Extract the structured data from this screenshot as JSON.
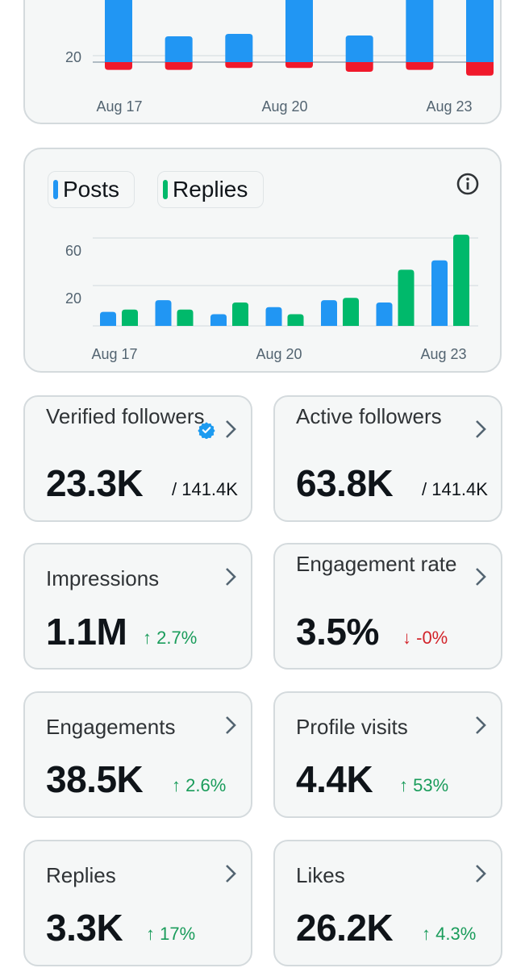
{
  "colors": {
    "posts": "#2196f3",
    "replies": "#00b96b",
    "negative": "#f0192b",
    "up": "#1a9c5b",
    "down": "#d2232a",
    "verified": "#1d9bf0"
  },
  "chart_top": {
    "chart_data": {
      "type": "bar",
      "x_tick_labels": [
        "Aug 17",
        "Aug 20",
        "Aug 23"
      ],
      "y_tick_labels": [
        "20"
      ],
      "ylim": [
        0,
        35
      ],
      "categories": [
        "Aug 17",
        "Aug 18",
        "Aug 19",
        "Aug 20",
        "Aug 21",
        "Aug 22",
        "Aug 23"
      ],
      "series": [
        {
          "color": "#2196f3",
          "values": [
            35,
            24,
            26,
            35,
            25,
            35,
            35
          ]
        },
        {
          "color": "#f0192b",
          "values": [
            -4,
            -4,
            -3,
            -3,
            -5,
            -4,
            -7
          ]
        }
      ]
    }
  },
  "chart_posts_replies": {
    "legend": {
      "posts": "Posts",
      "replies": "Replies"
    },
    "chart_data": {
      "type": "bar",
      "categories": [
        "Aug 17",
        "Aug 18",
        "Aug 19",
        "Aug 20",
        "Aug 21",
        "Aug 22",
        "Aug 23"
      ],
      "x_tick_labels": [
        "Aug 17",
        "Aug 20",
        "Aug 23"
      ],
      "y_tick_labels": [
        "60",
        "20"
      ],
      "ylim": [
        0,
        70
      ],
      "series": [
        {
          "name": "Posts",
          "color": "#2196f3",
          "values": [
            6,
            11,
            5,
            8,
            11,
            10,
            28
          ]
        },
        {
          "name": "Replies",
          "color": "#00b96b",
          "values": [
            7,
            7,
            10,
            5,
            12,
            24,
            39
          ]
        }
      ]
    }
  },
  "metrics": {
    "verified": {
      "label": "Verified followers",
      "value": "23.3K",
      "total": "/ 141.4K"
    },
    "active": {
      "label": "Active followers",
      "value": "63.8K",
      "total": "/ 141.4K"
    },
    "impressions": {
      "label": "Impressions",
      "value": "1.1M",
      "change": "↑ 2.7%"
    },
    "engagement_rate": {
      "label": "Engagement rate",
      "value": "3.5%",
      "change": "↓ -0%"
    },
    "engagements": {
      "label": "Engagements",
      "value": "38.5K",
      "change": "↑ 2.6%"
    },
    "profile_visits": {
      "label": "Profile visits",
      "value": "4.4K",
      "change": "↑ 53%"
    },
    "replies": {
      "label": "Replies",
      "value": "3.3K",
      "change": "↑ 17%"
    },
    "likes": {
      "label": "Likes",
      "value": "26.2K",
      "change": "↑ 4.3%"
    }
  }
}
